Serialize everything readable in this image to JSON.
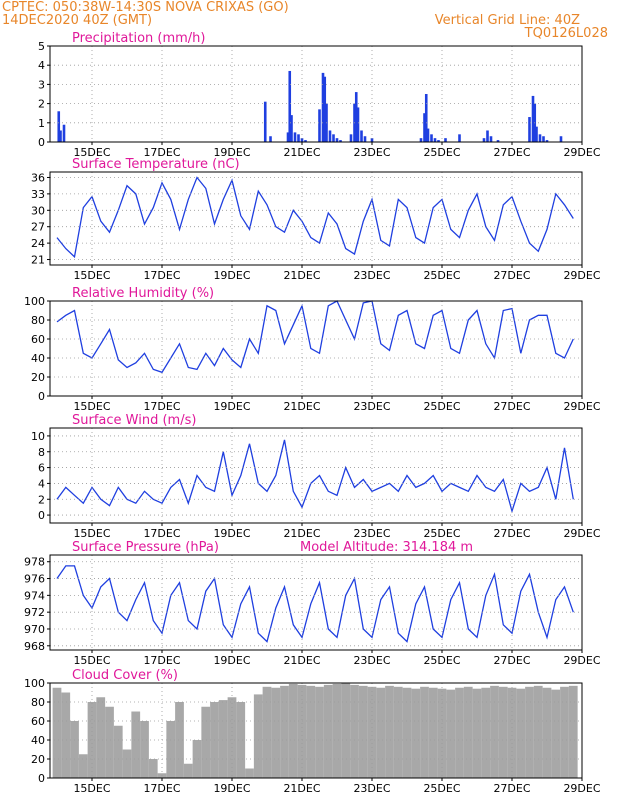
{
  "header": {
    "line1_left": "CPTEC:  050:38W-14:30S   NOVA CRIXAS (GO)",
    "line2_left": "14DEC2020 40Z (GMT)",
    "line1_right": "Vertical Grid Line: 40Z",
    "line2_right": "TQ0126L028"
  },
  "colors": {
    "header": "#e8862a",
    "titles": "#e0189a",
    "series": "#1f3fe0",
    "cloud": "#a8a8a8",
    "grid": "#9a9a9a"
  },
  "chart_data": [
    {
      "type": "bar",
      "title": "Precipitation (mm/h)",
      "ylim": [
        0,
        5
      ],
      "yticks": [
        "0",
        "1",
        "2",
        "3",
        "4",
        "5"
      ],
      "xticks": [
        "15DEC",
        "17DEC",
        "19DEC",
        "21DEC",
        "23DEC",
        "25DEC",
        "27DEC",
        "29DEC"
      ],
      "grid": true,
      "x": [
        0.05,
        0.1,
        0.2,
        5.95,
        6.1,
        6.6,
        6.65,
        6.7,
        6.8,
        6.9,
        7.0,
        7.1,
        7.5,
        7.6,
        7.65,
        7.7,
        7.8,
        7.9,
        8.0,
        8.1,
        8.4,
        8.5,
        8.55,
        8.6,
        8.7,
        8.8,
        9.0,
        10.4,
        10.5,
        10.55,
        10.6,
        10.7,
        10.8,
        10.9,
        11.1,
        11.5,
        12.2,
        12.3,
        12.4,
        12.6,
        13.5,
        13.6,
        13.65,
        13.7,
        13.8,
        13.9,
        14.0,
        14.4
      ],
      "values": [
        1.6,
        0.6,
        0.9,
        2.1,
        0.3,
        0.5,
        3.7,
        1.4,
        0.5,
        0.4,
        0.2,
        0.1,
        1.7,
        3.6,
        3.4,
        2.0,
        0.6,
        0.4,
        0.2,
        0.1,
        0.4,
        2.0,
        2.6,
        1.8,
        0.6,
        0.3,
        0.2,
        0.2,
        1.5,
        2.5,
        0.7,
        0.4,
        0.2,
        0.1,
        0.2,
        0.4,
        0.2,
        0.6,
        0.3,
        0.1,
        1.3,
        2.4,
        2.0,
        0.8,
        0.4,
        0.3,
        0.1,
        0.3
      ]
    },
    {
      "type": "line",
      "title": "Surface Temperature (nC)",
      "ylim": [
        20,
        37
      ],
      "yticks": [
        "21",
        "24",
        "27",
        "30",
        "33",
        "36"
      ],
      "xticks": [
        "15DEC",
        "17DEC",
        "19DEC",
        "21DEC",
        "23DEC",
        "25DEC",
        "27DEC",
        "29DEC"
      ],
      "grid": true,
      "x": [
        0,
        0.25,
        0.5,
        0.75,
        1,
        1.25,
        1.5,
        1.75,
        2,
        2.25,
        2.5,
        2.75,
        3,
        3.25,
        3.5,
        3.75,
        4,
        4.25,
        4.5,
        4.75,
        5,
        5.25,
        5.5,
        5.75,
        6,
        6.25,
        6.5,
        6.75,
        7,
        7.25,
        7.5,
        7.75,
        8,
        8.25,
        8.5,
        8.75,
        9,
        9.25,
        9.5,
        9.75,
        10,
        10.25,
        10.5,
        10.75,
        11,
        11.25,
        11.5,
        11.75,
        12,
        12.25,
        12.5,
        12.75,
        13,
        13.25,
        13.5,
        13.75,
        14,
        14.25,
        14.5,
        14.75
      ],
      "values": [
        25,
        23,
        21.5,
        30.5,
        32.5,
        28,
        26,
        30,
        34.5,
        33,
        27.5,
        30.5,
        35,
        32,
        26.5,
        32,
        36,
        34,
        27.5,
        32,
        35.5,
        29,
        26.5,
        33.5,
        31,
        27,
        26,
        30,
        28,
        25,
        24,
        29.5,
        27.5,
        23,
        22,
        28,
        32,
        24.5,
        23.5,
        32,
        30.5,
        25,
        24,
        30.5,
        32,
        26.5,
        25,
        30,
        33,
        27,
        24.5,
        31,
        32.5,
        28,
        24,
        22.5,
        26.5,
        33,
        31,
        28.5
      ]
    },
    {
      "type": "line",
      "title": "Relative Humidity (%)",
      "ylim": [
        0,
        100
      ],
      "yticks": [
        "0",
        "20",
        "40",
        "60",
        "80",
        "100"
      ],
      "xticks": [
        "15DEC",
        "17DEC",
        "19DEC",
        "21DEC",
        "23DEC",
        "25DEC",
        "27DEC",
        "29DEC"
      ],
      "grid": true,
      "x": [
        0,
        0.25,
        0.5,
        0.75,
        1,
        1.25,
        1.5,
        1.75,
        2,
        2.25,
        2.5,
        2.75,
        3,
        3.25,
        3.5,
        3.75,
        4,
        4.25,
        4.5,
        4.75,
        5,
        5.25,
        5.5,
        5.75,
        6,
        6.25,
        6.5,
        6.75,
        7,
        7.25,
        7.5,
        7.75,
        8,
        8.25,
        8.5,
        8.75,
        9,
        9.25,
        9.5,
        9.75,
        10,
        10.25,
        10.5,
        10.75,
        11,
        11.25,
        11.5,
        11.75,
        12,
        12.25,
        12.5,
        12.75,
        13,
        13.25,
        13.5,
        13.75,
        14,
        14.25,
        14.5,
        14.75
      ],
      "values": [
        78,
        85,
        90,
        45,
        40,
        55,
        70,
        38,
        30,
        35,
        45,
        28,
        25,
        40,
        55,
        30,
        28,
        45,
        32,
        50,
        38,
        30,
        60,
        45,
        95,
        90,
        55,
        75,
        95,
        50,
        45,
        95,
        100,
        80,
        60,
        98,
        100,
        55,
        48,
        85,
        90,
        55,
        50,
        85,
        90,
        50,
        45,
        80,
        90,
        55,
        40,
        90,
        92,
        45,
        80,
        85,
        85,
        45,
        40,
        60
      ]
    },
    {
      "type": "line",
      "title": "Surface Wind (m/s)",
      "ylim": [
        -1,
        11
      ],
      "yticks": [
        "0",
        "2",
        "4",
        "6",
        "8",
        "10"
      ],
      "xticks": [
        "15DEC",
        "17DEC",
        "19DEC",
        "21DEC",
        "23DEC",
        "25DEC",
        "27DEC",
        "29DEC"
      ],
      "grid": true,
      "x": [
        0,
        0.25,
        0.5,
        0.75,
        1,
        1.25,
        1.5,
        1.75,
        2,
        2.25,
        2.5,
        2.75,
        3,
        3.25,
        3.5,
        3.75,
        4,
        4.25,
        4.5,
        4.75,
        5,
        5.25,
        5.5,
        5.75,
        6,
        6.25,
        6.5,
        6.75,
        7,
        7.25,
        7.5,
        7.75,
        8,
        8.25,
        8.5,
        8.75,
        9,
        9.25,
        9.5,
        9.75,
        10,
        10.25,
        10.5,
        10.75,
        11,
        11.25,
        11.5,
        11.75,
        12,
        12.25,
        12.5,
        12.75,
        13,
        13.25,
        13.5,
        13.75,
        14,
        14.25,
        14.5,
        14.75
      ],
      "values": [
        2,
        3.5,
        2.5,
        1.5,
        3.5,
        2,
        1.2,
        3.5,
        2,
        1.5,
        3,
        2,
        1.5,
        3.5,
        4.5,
        1.5,
        5,
        3.5,
        3,
        8,
        2.5,
        5,
        9,
        4,
        3,
        5,
        9.5,
        3,
        1,
        4,
        5,
        3,
        2.5,
        6,
        3.5,
        4.5,
        3,
        3.5,
        4,
        3,
        5,
        3.5,
        4,
        5,
        3,
        4,
        3.5,
        3,
        5,
        3.5,
        3,
        4.5,
        0.5,
        4,
        3,
        3.5,
        6,
        2,
        8.5,
        2
      ]
    },
    {
      "type": "line",
      "title": "Surface Pressure (hPa)",
      "subtitle": "Model Altitude: 314.184 m",
      "ylim": [
        967.5,
        978.8
      ],
      "yticks": [
        "968",
        "970",
        "972",
        "974",
        "976",
        "978"
      ],
      "xticks": [
        "15DEC",
        "17DEC",
        "19DEC",
        "21DEC",
        "23DEC",
        "25DEC",
        "27DEC",
        "29DEC"
      ],
      "grid": true,
      "x": [
        0,
        0.25,
        0.5,
        0.75,
        1,
        1.25,
        1.5,
        1.75,
        2,
        2.25,
        2.5,
        2.75,
        3,
        3.25,
        3.5,
        3.75,
        4,
        4.25,
        4.5,
        4.75,
        5,
        5.25,
        5.5,
        5.75,
        6,
        6.25,
        6.5,
        6.75,
        7,
        7.25,
        7.5,
        7.75,
        8,
        8.25,
        8.5,
        8.75,
        9,
        9.25,
        9.5,
        9.75,
        10,
        10.25,
        10.5,
        10.75,
        11,
        11.25,
        11.5,
        11.75,
        12,
        12.25,
        12.5,
        12.75,
        13,
        13.25,
        13.5,
        13.75,
        14,
        14.25,
        14.5,
        14.75
      ],
      "values": [
        976,
        977.5,
        977.5,
        974,
        972.5,
        975,
        976,
        972,
        971,
        973.5,
        975.5,
        971,
        969.5,
        974,
        975.5,
        971,
        970,
        974.5,
        976,
        970.5,
        969,
        973,
        975,
        969.5,
        968.5,
        972.5,
        975,
        970.5,
        969,
        973,
        975.5,
        970,
        969,
        974,
        976,
        970,
        969,
        973.5,
        975,
        969.5,
        968.5,
        973,
        975,
        970,
        969,
        973.5,
        975.5,
        970,
        969,
        974,
        976.5,
        970.5,
        969.5,
        974.5,
        976.5,
        972,
        969,
        973.5,
        975,
        972
      ]
    },
    {
      "type": "area",
      "title": "Cloud Cover (%)",
      "ylim": [
        0,
        100
      ],
      "yticks": [
        "0",
        "20",
        "40",
        "60",
        "80",
        "100"
      ],
      "xticks": [
        "15DEC",
        "17DEC",
        "19DEC",
        "21DEC",
        "23DEC",
        "25DEC",
        "27DEC",
        "29DEC"
      ],
      "grid": true,
      "x": [
        0,
        0.25,
        0.5,
        0.75,
        1,
        1.25,
        1.5,
        1.75,
        2,
        2.25,
        2.5,
        2.75,
        3,
        3.25,
        3.5,
        3.75,
        4,
        4.25,
        4.5,
        4.75,
        5,
        5.25,
        5.5,
        5.75,
        6,
        6.25,
        6.5,
        6.75,
        7,
        7.25,
        7.5,
        7.75,
        8,
        8.25,
        8.5,
        8.75,
        9,
        9.25,
        9.5,
        9.75,
        10,
        10.25,
        10.5,
        10.75,
        11,
        11.25,
        11.5,
        11.75,
        12,
        12.25,
        12.5,
        12.75,
        13,
        13.25,
        13.5,
        13.75,
        14,
        14.25,
        14.5,
        14.75
      ],
      "values": [
        95,
        90,
        60,
        25,
        80,
        85,
        75,
        55,
        30,
        70,
        60,
        20,
        5,
        60,
        80,
        15,
        40,
        75,
        80,
        82,
        85,
        80,
        10,
        88,
        96,
        95,
        97,
        99,
        98,
        97,
        96,
        98,
        99,
        100,
        98,
        97,
        96,
        95,
        97,
        96,
        95,
        94,
        96,
        95,
        94,
        93,
        95,
        96,
        94,
        95,
        97,
        96,
        95,
        94,
        96,
        97,
        95,
        93,
        96,
        97
      ]
    }
  ]
}
